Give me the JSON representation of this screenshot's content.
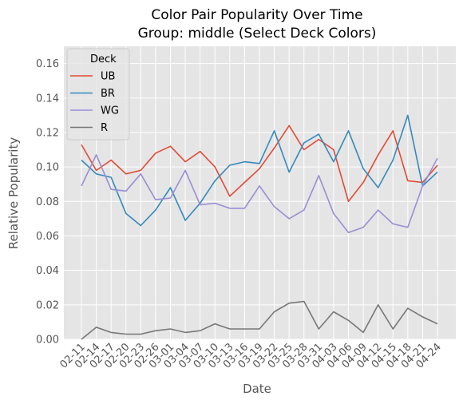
{
  "chart_data": {
    "type": "line",
    "title": "Color Pair Popularity Over Time",
    "subtitle": "Group: middle (Select Deck Colors)",
    "xlabel": "Date",
    "ylabel": "Relative Popularity",
    "ylim": [
      0,
      0.17
    ],
    "yticks": [
      "0.00",
      "0.02",
      "0.04",
      "0.06",
      "0.08",
      "0.10",
      "0.12",
      "0.14",
      "0.16"
    ],
    "grid": true,
    "legend_position": "top-left",
    "legend_title": "Deck",
    "categories": [
      "02-11",
      "02-14",
      "02-17",
      "02-20",
      "02-23",
      "02-26",
      "03-01",
      "03-04",
      "03-07",
      "03-10",
      "03-13",
      "03-16",
      "03-19",
      "03-22",
      "03-25",
      "03-28",
      "03-31",
      "04-03",
      "04-06",
      "04-09",
      "04-12",
      "04-15",
      "04-18",
      "04-21",
      "04-24"
    ],
    "series": [
      {
        "name": "UB",
        "color": "#E24A33",
        "values": [
          0.113,
          0.098,
          0.104,
          0.096,
          0.098,
          0.108,
          0.112,
          0.103,
          0.109,
          0.1,
          0.083,
          0.091,
          0.099,
          0.111,
          0.124,
          0.11,
          0.116,
          0.11,
          0.08,
          0.091,
          0.107,
          0.121,
          0.092,
          0.091,
          0.101
        ]
      },
      {
        "name": "BR",
        "color": "#348ABD",
        "values": [
          0.104,
          0.096,
          0.094,
          0.073,
          0.066,
          0.075,
          0.088,
          0.069,
          0.079,
          0.092,
          0.101,
          0.103,
          0.102,
          0.121,
          0.097,
          0.114,
          0.119,
          0.103,
          0.121,
          0.099,
          0.088,
          0.104,
          0.13,
          0.089,
          0.097
        ]
      },
      {
        "name": "WG",
        "color": "#988ED5",
        "values": [
          0.089,
          0.107,
          0.087,
          0.086,
          0.096,
          0.081,
          0.082,
          0.098,
          0.078,
          0.079,
          0.076,
          0.076,
          0.089,
          0.077,
          0.07,
          0.075,
          0.095,
          0.073,
          0.062,
          0.065,
          0.075,
          0.067,
          0.065,
          0.089,
          0.105
        ]
      },
      {
        "name": "R",
        "color": "#777777",
        "values": [
          0.0,
          0.007,
          0.004,
          0.003,
          0.003,
          0.005,
          0.006,
          0.004,
          0.005,
          0.009,
          0.006,
          0.006,
          0.006,
          0.016,
          0.021,
          0.022,
          0.006,
          0.016,
          0.011,
          0.004,
          0.02,
          0.006,
          0.018,
          0.013,
          0.009
        ]
      }
    ]
  }
}
